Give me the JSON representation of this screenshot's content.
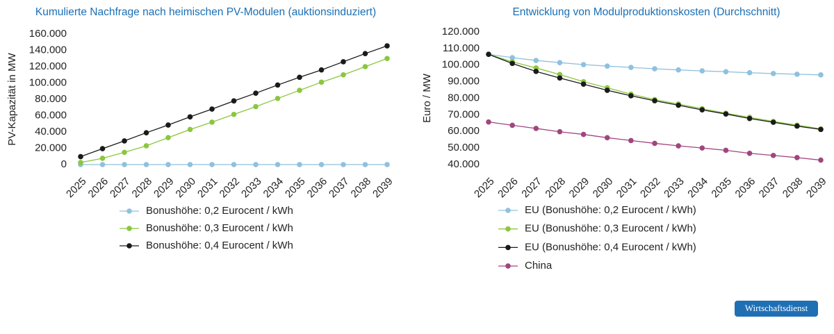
{
  "chart_data": [
    {
      "type": "line",
      "title": "Kumulierte Nachfrage nach heimischen PV-Modulen (auktionsinduziert)",
      "y_label": "PV-Kapazität in MW",
      "categories": [
        "2025",
        "2026",
        "2027",
        "2028",
        "2029",
        "2030",
        "2031",
        "2032",
        "2033",
        "2034",
        "2035",
        "2036",
        "2037",
        "2038",
        "2039"
      ],
      "ylim": [
        0,
        160000
      ],
      "yticks": [
        0,
        {
          "value": 20000,
          "label": "20.000"
        },
        {
          "value": 40000,
          "label": "40.000"
        },
        {
          "value": 60000,
          "label": "60.000"
        },
        {
          "value": 80000,
          "label": "80.000"
        },
        {
          "value": 100000,
          "label": "100.000"
        },
        {
          "value": 120000,
          "label": "120.000"
        },
        {
          "value": 140000,
          "label": "140.000"
        },
        {
          "value": 160000,
          "label": "160.000"
        }
      ],
      "grid": false,
      "series": [
        {
          "name": "Bonushöhe: 0,2 Eurocent / kWh",
          "color": "#8fc1de",
          "values": [
            0,
            0,
            0,
            0,
            0,
            0,
            0,
            0,
            0,
            0,
            0,
            0,
            0,
            0,
            0
          ]
        },
        {
          "name": "Bonushöhe: 0,3 Eurocent / kWh",
          "color": "#8cc63f",
          "values": [
            2500,
            7700,
            15000,
            23000,
            33000,
            43000,
            52000,
            61500,
            71000,
            81000,
            91000,
            101000,
            110000,
            120000,
            130000
          ]
        },
        {
          "name": "Bonushöhe: 0,4 Eurocent / kWh",
          "color": "#1a1a1a",
          "values": [
            9700,
            19500,
            29000,
            39000,
            48500,
            58500,
            68000,
            78000,
            87500,
            97500,
            107000,
            116000,
            126000,
            136000,
            145500
          ]
        }
      ]
    },
    {
      "type": "line",
      "title": "Entwicklung von Modulproduktionskosten (Durchschnitt)",
      "y_label": "Euro / MW",
      "categories": [
        "2025",
        "2026",
        "2027",
        "2028",
        "2029",
        "2030",
        "2031",
        "2032",
        "2033",
        "2034",
        "2035",
        "2036",
        "2037",
        "2038",
        "2039"
      ],
      "ylim": [
        40000,
        120000
      ],
      "yticks": [
        {
          "value": 40000,
          "label": "40.000"
        },
        {
          "value": 50000,
          "label": "50.000"
        },
        {
          "value": 60000,
          "label": "60.000"
        },
        {
          "value": 70000,
          "label": "70.000"
        },
        {
          "value": 80000,
          "label": "80.000"
        },
        {
          "value": 90000,
          "label": "90.000"
        },
        {
          "value": 100000,
          "label": "100.000"
        },
        {
          "value": 110000,
          "label": "110.000"
        },
        {
          "value": 120000,
          "label": "120.000"
        }
      ],
      "grid": false,
      "series": [
        {
          "name": "EU (Bonushöhe: 0,2 Eurocent / kWh)",
          "color": "#8fc1de",
          "values": [
            106500,
            104500,
            102800,
            101500,
            100300,
            99400,
            98600,
            97800,
            97100,
            96500,
            96000,
            95400,
            94900,
            94500,
            94100
          ]
        },
        {
          "name": "EU (Bonushöhe: 0,3 Eurocent / kWh)",
          "color": "#8cc63f",
          "values": [
            106500,
            102000,
            98300,
            94300,
            90000,
            86300,
            82500,
            79200,
            76500,
            73700,
            71000,
            68500,
            66000,
            63800,
            61500
          ]
        },
        {
          "name": "EU (Bonushöhe: 0,4 Eurocent / kWh)",
          "color": "#1a1a1a",
          "values": [
            106500,
            101000,
            96200,
            92200,
            88500,
            84800,
            81500,
            78500,
            75800,
            73000,
            70500,
            67800,
            65500,
            63200,
            61200
          ]
        },
        {
          "name": "China",
          "color": "#a0467e",
          "values": [
            65700,
            63700,
            61800,
            59800,
            58200,
            56200,
            54500,
            52800,
            51300,
            50000,
            48600,
            46800,
            45500,
            44200,
            42700
          ]
        }
      ]
    }
  ],
  "badge": "Wirtschaftsdienst"
}
